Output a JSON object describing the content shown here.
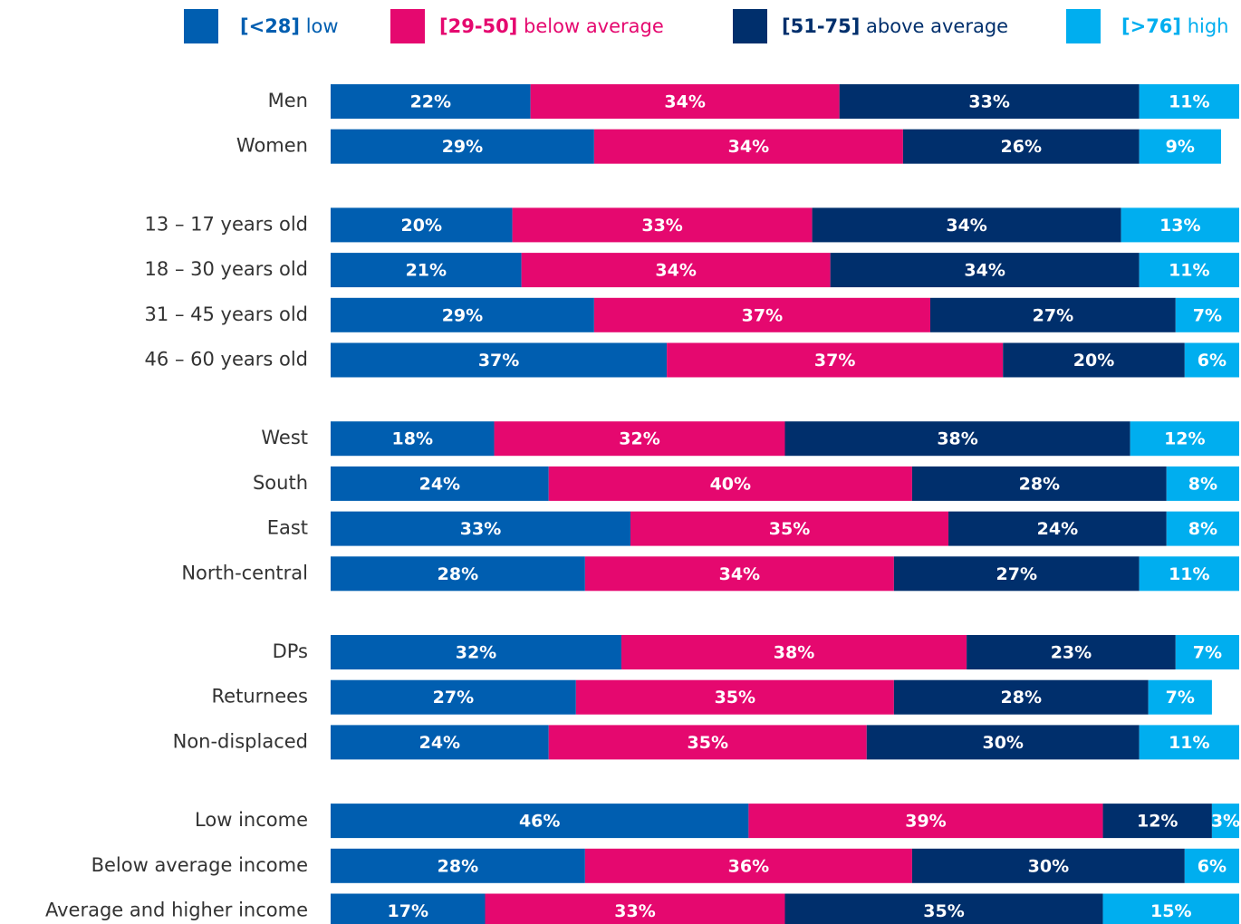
{
  "chart_data": {
    "type": "stacked-bar-horizontal",
    "categories": [
      "Men",
      "Women",
      "13 – 17 years old",
      "18 – 30 years old",
      "31 – 45 years old",
      "46 – 60 years old",
      "West",
      "South",
      "East",
      "North-central",
      "DPs",
      "Returnees",
      "Non-displaced",
      "Low income",
      "Below average income",
      "Average and higher income"
    ],
    "xlim": [
      0,
      100
    ],
    "legend": "top",
    "series": [
      {
        "name": "[<28] low",
        "color": "#005eb0",
        "values": [
          22,
          29,
          20,
          21,
          29,
          37,
          18,
          24,
          33,
          28,
          32,
          27,
          24,
          46,
          28,
          17
        ],
        "value_labels": [
          "22%",
          "29%",
          "20%",
          "21%",
          "29%",
          "37%",
          "18%",
          "24%",
          "33%",
          "28%",
          "32%",
          "27%",
          "24%",
          "46%",
          "28%",
          "17%"
        ]
      },
      {
        "name": "[29-50] below average",
        "color": "#e5086f",
        "values": [
          34,
          34,
          33,
          34,
          37,
          37,
          32,
          40,
          35,
          34,
          38,
          35,
          35,
          39,
          36,
          33
        ],
        "value_labels": [
          "34%",
          "34%",
          "33%",
          "34%",
          "37%",
          "37%",
          "32%",
          "40%",
          "35%",
          "34%",
          "38%",
          "35%",
          "35%",
          "39%",
          "36%",
          "33%"
        ]
      },
      {
        "name": "[51-75] above average",
        "color": "#002f6c",
        "values": [
          33,
          26,
          34,
          34,
          27,
          20,
          38,
          28,
          24,
          27,
          23,
          28,
          30,
          12,
          30,
          35
        ],
        "value_labels": [
          "33%",
          "26%",
          "34%",
          "34%",
          "27%",
          "20%",
          "38%",
          "28%",
          "24%",
          "27%",
          "23%",
          "28%",
          "30%",
          "12%",
          "30%",
          "35%"
        ]
      },
      {
        "name": "[>76] high",
        "color": "#00aeef",
        "values": [
          11,
          9,
          13,
          11,
          7,
          6,
          12,
          8,
          8,
          11,
          7,
          7,
          11,
          3,
          6,
          15
        ],
        "value_labels": [
          "11%",
          "9%",
          "13%",
          "11%",
          "7%",
          "6%",
          "12%",
          "8%",
          "8%",
          "11%",
          "7%",
          "7%",
          "11%",
          "3%",
          "6%",
          "15%"
        ]
      }
    ]
  }
}
